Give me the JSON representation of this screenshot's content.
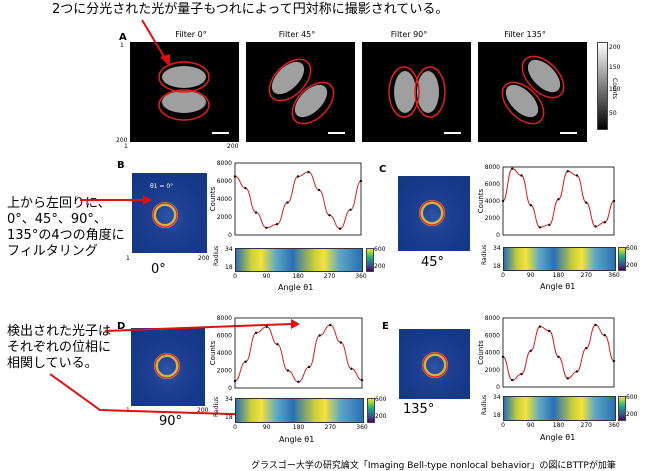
{
  "annotations": {
    "top": "2つに分光された光が量子もつれによって円対称に撮影されている。",
    "left_mid_lines": [
      "上から左回りに、",
      "0°、45°、90°、",
      "135°の4つの角度に",
      "フィルタリング"
    ],
    "left_bottom_lines": [
      "検出された光子は",
      "それぞれの位相に",
      "相関している。"
    ],
    "caption": "グラスゴー大学の研究論文「Imaging Bell-type nonlocal behavior」の図にBTTPが加筆"
  },
  "panel_A": {
    "letter": "A",
    "filters": [
      "Filter 0°",
      "Filter 45°",
      "Filter 90°",
      "Filter 135°"
    ],
    "axis_ticks": {
      "x_start": "1",
      "x_end": "200",
      "y_start": "1",
      "y_end": "200"
    },
    "colorbar_label": "Counts",
    "colorbar_ticks": [
      "200",
      "150",
      "100",
      "50"
    ]
  },
  "panels": [
    {
      "letter": "B",
      "angle_label": "0°",
      "theta_label": "θ1 = 0°"
    },
    {
      "letter": "C",
      "angle_label": "45°"
    },
    {
      "letter": "D",
      "angle_label": "90°"
    },
    {
      "letter": "E",
      "angle_label": "135°"
    }
  ],
  "image_ticks": {
    "start": "1",
    "end": "200"
  },
  "plot_labels": {
    "ylabel_counts": "Counts",
    "ylabel_radius": "Radius",
    "xlabel": "Angle θ1",
    "x_ticks": [
      "0",
      "90",
      "180",
      "270",
      "360"
    ],
    "y_ticks": [
      "8000",
      "6000",
      "4000",
      "2000",
      "0"
    ],
    "radius_ticks": [
      "34",
      "18"
    ],
    "cb_ticks": [
      "600",
      "200"
    ]
  },
  "colors": {
    "fit": "#d42020",
    "arrow": "#e01010",
    "ellipse": "#e02020"
  },
  "chart_data": [
    {
      "type": "line",
      "panel": "B",
      "xlabel": "Angle θ1",
      "ylabel": "Counts",
      "xlim": [
        0,
        360
      ],
      "ylim": [
        0,
        8000
      ],
      "x": [
        0,
        30,
        60,
        90,
        120,
        150,
        180,
        210,
        240,
        270,
        300,
        330,
        360
      ],
      "values": [
        6500,
        5200,
        2500,
        800,
        1200,
        3600,
        6500,
        7000,
        5000,
        2200,
        700,
        2800,
        6000
      ]
    },
    {
      "type": "line",
      "panel": "C",
      "xlabel": "Angle θ1",
      "ylabel": "Counts",
      "xlim": [
        0,
        360
      ],
      "ylim": [
        0,
        8000
      ],
      "x": [
        0,
        30,
        60,
        90,
        120,
        150,
        180,
        210,
        240,
        270,
        300,
        330,
        360
      ],
      "values": [
        4000,
        7800,
        7000,
        3500,
        900,
        1200,
        4200,
        7500,
        7000,
        3800,
        1000,
        1500,
        4000
      ]
    },
    {
      "type": "line",
      "panel": "D",
      "xlabel": "Angle θ1",
      "ylabel": "Counts",
      "xlim": [
        0,
        360
      ],
      "ylim": [
        0,
        8000
      ],
      "x": [
        0,
        30,
        60,
        90,
        120,
        150,
        180,
        210,
        240,
        270,
        300,
        330,
        360
      ],
      "values": [
        800,
        3000,
        6300,
        7000,
        5000,
        2000,
        700,
        2400,
        6000,
        7200,
        5200,
        2200,
        900
      ]
    },
    {
      "type": "line",
      "panel": "E",
      "xlabel": "Angle θ1",
      "ylabel": "Counts",
      "xlim": [
        0,
        360
      ],
      "ylim": [
        0,
        8000
      ],
      "x": [
        0,
        30,
        60,
        90,
        120,
        150,
        180,
        210,
        240,
        270,
        300,
        330,
        360
      ],
      "values": [
        3500,
        800,
        1500,
        4200,
        7000,
        6500,
        3500,
        1000,
        1800,
        4500,
        7200,
        6000,
        3000
      ]
    }
  ]
}
